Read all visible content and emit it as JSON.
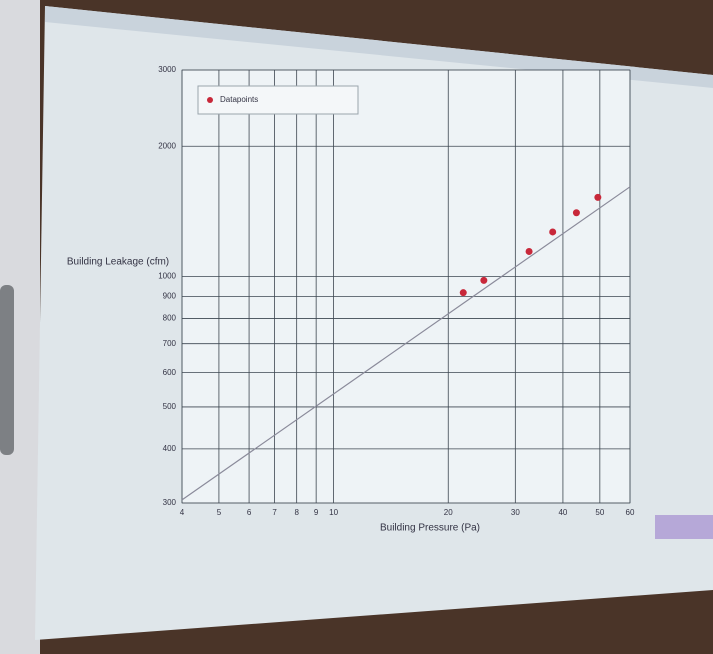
{
  "chart_data": {
    "type": "scatter",
    "y_label": "Building Leakage (cfm)",
    "x_label": "Building Pressure (Pa)",
    "log_x": true,
    "log_y": true,
    "grid": true,
    "xlim": [
      4,
      60
    ],
    "ylim": [
      300,
      3000
    ],
    "xticks": [
      4,
      5,
      6,
      7,
      8,
      9,
      10,
      20,
      30,
      40,
      50,
      60
    ],
    "yticks": [
      300,
      400,
      500,
      600,
      700,
      800,
      900,
      1000,
      2000,
      3000
    ],
    "legend": "top-left",
    "series": [
      {
        "name": "Datapoints",
        "color": "#c8283a",
        "mode": "markers",
        "x": [
          21.9,
          24.8,
          32.6,
          37.6,
          43.4,
          49.4
        ],
        "values": [
          918,
          980,
          1143,
          1268,
          1404,
          1524
        ]
      },
      {
        "color": "#8a8a9a",
        "mode": "line",
        "x": [
          4,
          60
        ],
        "values": [
          305,
          1612
        ]
      }
    ]
  }
}
